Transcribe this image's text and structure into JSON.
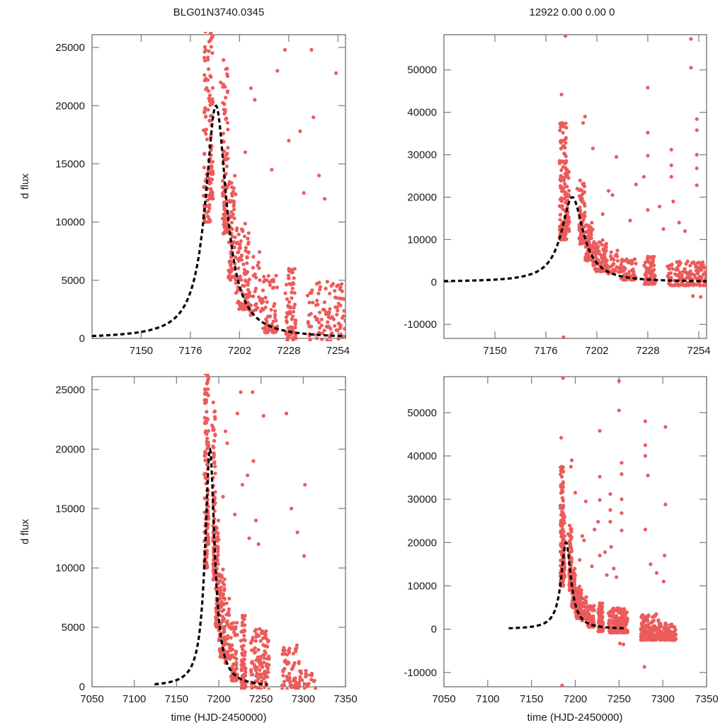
{
  "figure": {
    "title_left": "BLG01N3740.0345",
    "title_right": "12922  0.00  0.00  0",
    "ylabel": "d flux",
    "xlabel": "time (HJD-2450000)"
  },
  "colors": {
    "data_points": "#ec5b5b",
    "model": "#000000",
    "axes": "#7a7a7a"
  },
  "chart_data": [
    {
      "id": "top-left",
      "type": "scatter",
      "title": "BLG01N3740.0345",
      "xlabel": "",
      "ylabel": "d flux",
      "xlim": [
        7124,
        7258
      ],
      "ylim": [
        0,
        26100
      ],
      "xticks": [
        7150,
        7176,
        7202,
        7228,
        7254
      ],
      "yticks": [
        0,
        5000,
        10000,
        15000,
        20000,
        25000
      ],
      "model": {
        "t0": 7189.5,
        "peak": 20000,
        "width": 8.5,
        "baseline": 0,
        "style": "dashed"
      }
    },
    {
      "id": "top-right",
      "type": "scatter",
      "title": "12922  0.00  0.00  0",
      "xlabel": "",
      "ylabel": "",
      "xlim": [
        7124,
        7258
      ],
      "ylim": [
        -13300,
        58300
      ],
      "xticks": [
        7150,
        7176,
        7202,
        7228,
        7254
      ],
      "yticks": [
        -10000,
        0,
        10000,
        20000,
        30000,
        40000,
        50000
      ],
      "model": {
        "t0": 7189.5,
        "peak": 20000,
        "width": 8.5,
        "baseline": 0,
        "style": "dashed"
      }
    },
    {
      "id": "bottom-left",
      "type": "scatter",
      "title": "",
      "xlabel": "time (HJD-2450000)",
      "ylabel": "d flux",
      "xlim": [
        7050,
        7350
      ],
      "ylim": [
        0,
        26100
      ],
      "xticks": [
        7050,
        7100,
        7150,
        7200,
        7250,
        7300,
        7350
      ],
      "yticks": [
        0,
        5000,
        10000,
        15000,
        20000,
        25000
      ],
      "model": {
        "t0": 7189.5,
        "peak": 20000,
        "width": 8.5,
        "baseline": 0,
        "xrange": [
          7124,
          7258
        ],
        "style": "dashed"
      }
    },
    {
      "id": "bottom-right",
      "type": "scatter",
      "title": "",
      "xlabel": "time (HJD-2450000)",
      "ylabel": "",
      "xlim": [
        7050,
        7350
      ],
      "ylim": [
        -13300,
        58300
      ],
      "xticks": [
        7050,
        7100,
        7150,
        7200,
        7250,
        7300,
        7350
      ],
      "yticks": [
        -10000,
        0,
        10000,
        20000,
        30000,
        40000,
        50000
      ],
      "model": {
        "t0": 7189.5,
        "peak": 20000,
        "width": 8.5,
        "baseline": 0,
        "xrange": [
          7124,
          7258
        ],
        "style": "dashed"
      }
    }
  ],
  "observations": {
    "description": "Photometric data points (time, d flux) shared by all four panels; each panel clips to its axis range.",
    "clusters": [
      {
        "t_range": [
          7183,
          7186.5
        ],
        "flux_range": [
          10000,
          39000
        ],
        "count": 110
      },
      {
        "t_range": [
          7186,
          7188
        ],
        "flux_range": [
          12000,
          27000
        ],
        "count": 60
      },
      {
        "t_range": [
          7193,
          7196
        ],
        "flux_range": [
          9000,
          24000
        ],
        "count": 90
      },
      {
        "t_range": [
          7196,
          7200
        ],
        "flux_range": [
          5000,
          14000
        ],
        "count": 70
      },
      {
        "t_range": [
          7200,
          7207
        ],
        "flux_range": [
          2500,
          10000
        ],
        "count": 90
      },
      {
        "t_range": [
          7207,
          7214
        ],
        "flux_range": [
          2000,
          8000
        ],
        "count": 40
      },
      {
        "t_range": [
          7214,
          7222
        ],
        "flux_range": [
          500,
          6000
        ],
        "count": 70
      },
      {
        "t_range": [
          7226,
          7232
        ],
        "flux_range": [
          -500,
          6000
        ],
        "count": 80
      },
      {
        "t_range": [
          7238,
          7260
        ],
        "flux_range": [
          -800,
          5000
        ],
        "count": 150
      },
      {
        "t_range": [
          7275,
          7295
        ],
        "flux_range": [
          -2500,
          3500
        ],
        "count": 150
      },
      {
        "t_range": [
          7295,
          7315
        ],
        "flux_range": [
          -2500,
          1500
        ],
        "count": 110
      }
    ],
    "outliers": [
      [
        7186,
        58000
      ],
      [
        7184,
        44200
      ],
      [
        7196,
        39000
      ],
      [
        7195,
        37500
      ],
      [
        7200,
        31500
      ],
      [
        7212,
        29500
      ],
      [
        7228,
        45800
      ],
      [
        7228,
        35200
      ],
      [
        7228,
        29800
      ],
      [
        7240,
        31200
      ],
      [
        7240,
        27500
      ],
      [
        7240,
        24800
      ],
      [
        7253,
        38400
      ],
      [
        7253,
        35800
      ],
      [
        7253,
        30000
      ],
      [
        7253,
        26800
      ],
      [
        7253,
        22800
      ],
      [
        7226,
        24800
      ],
      [
        7222,
        23000
      ],
      [
        7208,
        21500
      ],
      [
        7192,
        22000
      ],
      [
        7210,
        20500
      ],
      [
        7234,
        17800
      ],
      [
        7250,
        57300
      ],
      [
        7250,
        50500
      ],
      [
        7228,
        17000
      ],
      [
        7244,
        14000
      ],
      [
        7205,
        16000
      ],
      [
        7219,
        14500
      ],
      [
        7236,
        12500
      ],
      [
        7185,
        -13000
      ],
      [
        7280,
        48000
      ],
      [
        7280,
        42500
      ],
      [
        7280,
        40000
      ],
      [
        7280,
        23000
      ],
      [
        7303,
        46700
      ],
      [
        7303,
        28800
      ],
      [
        7286,
        15000
      ],
      [
        7283,
        35500
      ],
      [
        7293,
        13000
      ],
      [
        7302,
        17000
      ],
      [
        7301,
        11000
      ],
      [
        7251,
        -3300
      ],
      [
        7255,
        -3500
      ],
      [
        7279,
        -8700
      ],
      [
        7258,
        1500
      ],
      [
        7247,
        12000
      ],
      [
        7241,
        19000
      ]
    ]
  }
}
